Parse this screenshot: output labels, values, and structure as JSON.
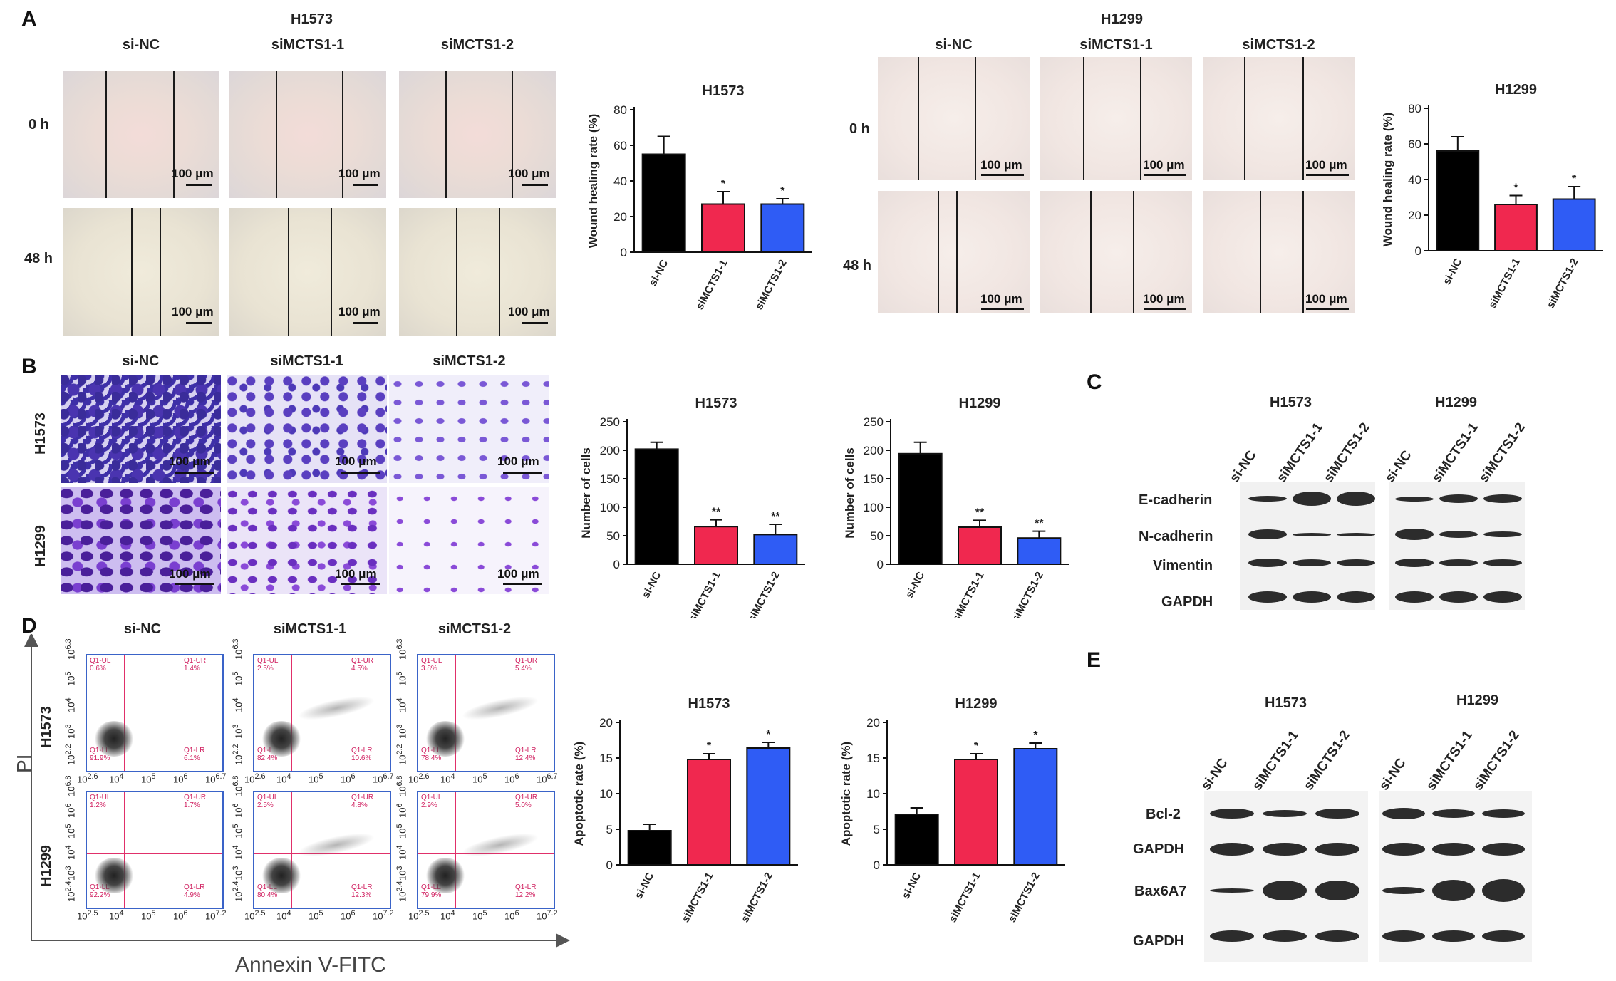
{
  "panels": {
    "A": "A",
    "B": "B",
    "C": "C",
    "D": "D",
    "E": "E"
  },
  "panelA": {
    "lines": [
      "H1573",
      "H1299"
    ],
    "groups": [
      "si-NC",
      "siMCTS1-1",
      "siMCTS1-2"
    ],
    "times": [
      "0 h",
      "48 h"
    ],
    "scale_bar": "100 μm"
  },
  "panelB": {
    "groups": [
      "si-NC",
      "siMCTS1-1",
      "siMCTS1-2"
    ],
    "rows": [
      "H1573",
      "H1299"
    ],
    "scale_bar": "100 μm"
  },
  "panelC": {
    "lines": [
      "H1573",
      "H1299"
    ],
    "lanes": [
      "si-NC",
      "siMCTS1-1",
      "siMCTS1-2"
    ],
    "proteins": [
      "E-cadherin",
      "N-cadherin",
      "Vimentin",
      "GAPDH"
    ]
  },
  "panelD": {
    "groups": [
      "si-NC",
      "siMCTS1-1",
      "siMCTS1-2"
    ],
    "rows": [
      "H1573",
      "H1299"
    ],
    "y_axis": "PI",
    "x_axis": "Annexin V-FITC",
    "quadrant_names": [
      "Q1-UL",
      "Q1-UR",
      "Q1-LL",
      "Q1-LR"
    ],
    "quadrant_values": [
      [
        "0.6%",
        "1.4%",
        "91.9%",
        "6.1%"
      ],
      [
        "2.5%",
        "4.5%",
        "82.4%",
        "10.6%"
      ],
      [
        "3.8%",
        "5.4%",
        "78.4%",
        "12.4%"
      ],
      [
        "1.2%",
        "1.7%",
        "92.2%",
        "4.9%"
      ],
      [
        "2.5%",
        "4.8%",
        "80.4%",
        "12.3%"
      ],
      [
        "2.9%",
        "5.0%",
        "79.9%",
        "12.2%"
      ]
    ],
    "flow_ticks_y_top": [
      "10<sup>2.2</sup>",
      "10<sup>3</sup>",
      "10<sup>4</sup>",
      "10<sup>5</sup>",
      "10<sup>6.3</sup>"
    ],
    "flow_ticks_x_top": [
      "10<sup>2.6</sup>",
      "10<sup>4</sup>",
      "10<sup>5</sup>",
      "10<sup>6</sup>",
      "10<sup>6.7</sup>"
    ],
    "flow_ticks_y_bottom": [
      "10<sup>2.4</sup>",
      "10<sup>3</sup>",
      "10<sup>4</sup>",
      "10<sup>5</sup>",
      "10<sup>6</sup>",
      "10<sup>6.8</sup>"
    ],
    "flow_ticks_x_bottom": [
      "10<sup>2.5</sup>",
      "10<sup>4</sup>",
      "10<sup>5</sup>",
      "10<sup>6</sup>",
      "10<sup>7.2</sup>"
    ]
  },
  "panelE": {
    "lines": [
      "H1573",
      "H1299"
    ],
    "lanes": [
      "si-NC",
      "siMCTS1-1",
      "siMCTS1-2"
    ],
    "proteins": [
      "Bcl-2",
      "GAPDH",
      "Bax6A7",
      "GAPDH"
    ]
  },
  "colors": {
    "sinc": "#000000",
    "mcts1": "#f0284f",
    "mcts2": "#2f5cf5"
  },
  "chart_data": [
    {
      "id": "wound_h1573",
      "type": "bar",
      "title": "H1573",
      "ylabel": "Wound healing rate (%)",
      "ylim": [
        0,
        80
      ],
      "yticks": [
        0,
        20,
        40,
        60,
        80
      ],
      "categories": [
        "si-NC",
        "siMCTS1-1",
        "siMCTS1-2"
      ],
      "values": [
        55,
        27,
        27
      ],
      "errors": [
        10,
        7,
        3
      ],
      "significance": [
        "",
        "*",
        "*"
      ],
      "grid": false
    },
    {
      "id": "wound_h1299",
      "type": "bar",
      "title": "H1299",
      "ylabel": "Wound healing rate (%)",
      "ylim": [
        0,
        80
      ],
      "yticks": [
        0,
        20,
        40,
        60,
        80
      ],
      "categories": [
        "si-NC",
        "siMCTS1-1",
        "siMCTS1-2"
      ],
      "values": [
        56,
        26,
        29
      ],
      "errors": [
        8,
        5,
        7
      ],
      "significance": [
        "",
        "*",
        "*"
      ],
      "grid": false
    },
    {
      "id": "invasion_h1573",
      "type": "bar",
      "title": "H1573",
      "ylabel": "Number of cells",
      "ylim": [
        0,
        250
      ],
      "yticks": [
        0,
        50,
        100,
        150,
        200,
        250
      ],
      "categories": [
        "si-NC",
        "siMCTS1-1",
        "siMCTS1-2"
      ],
      "values": [
        202,
        66,
        52
      ],
      "errors": [
        12,
        12,
        18
      ],
      "significance": [
        "",
        "**",
        "**"
      ],
      "grid": false
    },
    {
      "id": "invasion_h1299",
      "type": "bar",
      "title": "H1299",
      "ylabel": "Number of cells",
      "ylim": [
        0,
        250
      ],
      "yticks": [
        0,
        50,
        100,
        150,
        200,
        250
      ],
      "categories": [
        "si-NC",
        "siMCTS1-1",
        "siMCTS1-2"
      ],
      "values": [
        194,
        65,
        46
      ],
      "errors": [
        20,
        12,
        12
      ],
      "significance": [
        "",
        "**",
        "**"
      ],
      "grid": false
    },
    {
      "id": "apoptosis_h1573",
      "type": "bar",
      "title": "H1573",
      "ylabel": "Apoptotic rate (%)",
      "ylim": [
        0,
        20
      ],
      "yticks": [
        0,
        5,
        10,
        15,
        20
      ],
      "categories": [
        "si-NC",
        "siMCTS1-1",
        "siMCTS1-2"
      ],
      "values": [
        4.8,
        14.8,
        16.4
      ],
      "errors": [
        0.9,
        0.8,
        0.8
      ],
      "significance": [
        "",
        "*",
        "*"
      ],
      "grid": false
    },
    {
      "id": "apoptosis_h1299",
      "type": "bar",
      "title": "H1299",
      "ylabel": "Apoptotic rate (%)",
      "ylim": [
        0,
        20
      ],
      "yticks": [
        0,
        5,
        10,
        15,
        20
      ],
      "categories": [
        "si-NC",
        "siMCTS1-1",
        "siMCTS1-2"
      ],
      "values": [
        7.1,
        14.8,
        16.3
      ],
      "errors": [
        0.9,
        0.8,
        0.8
      ],
      "significance": [
        "",
        "*",
        "*"
      ],
      "grid": false
    }
  ]
}
